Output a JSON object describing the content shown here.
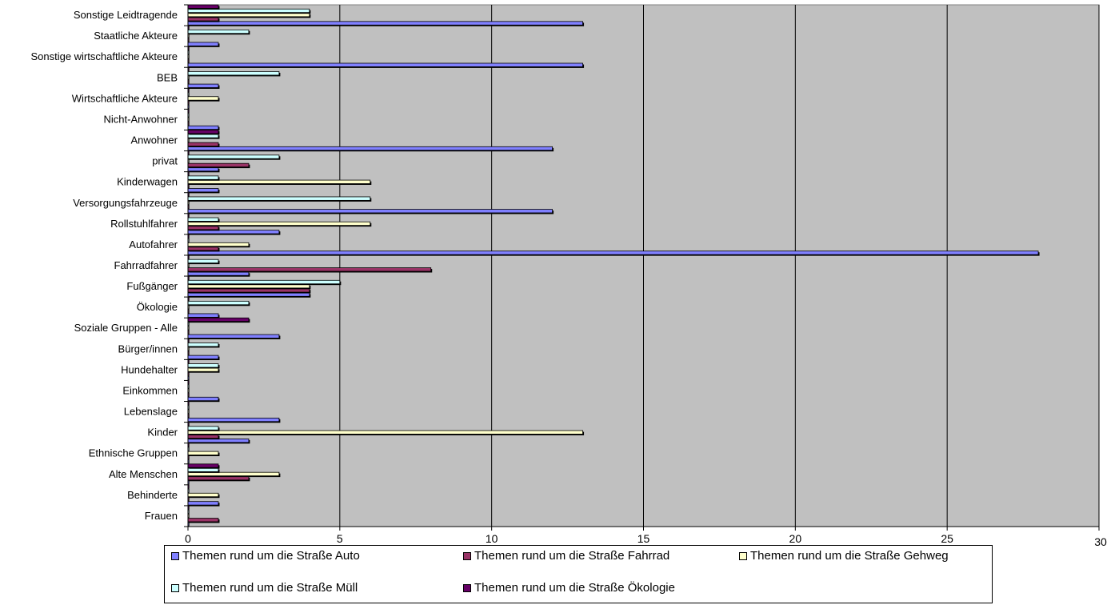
{
  "chart_data": {
    "type": "bar",
    "orientation": "horizontal",
    "categories": [
      "Sonstige Leidtragende",
      "Staatliche Akteure",
      "Sonstige wirtschaftliche Akteure",
      "BEB",
      "Wirtschaftliche Akteure",
      "Nicht-Anwohner",
      "Anwohner",
      "privat",
      "Kinderwagen",
      "Versorgungsfahrzeuge",
      "Rollstuhlfahrer",
      "Autofahrer",
      "Fahrradfahrer",
      "Fußgänger",
      "Ökologie",
      "Soziale Gruppen - Alle",
      "Bürger/innen",
      "Hundehalter",
      "Einkommen",
      "Lebenslage",
      "Kinder",
      "Ethnische Gruppen",
      "Alte Menschen",
      "Behinderte",
      "Frauen"
    ],
    "series": [
      {
        "name": "Themen rund um die Straße Auto",
        "color": "#8080ff",
        "values": [
          13,
          1,
          13,
          1,
          0,
          1,
          12,
          1,
          1,
          12,
          3,
          28,
          2,
          4,
          1,
          3,
          1,
          0,
          1,
          3,
          2,
          0,
          0,
          1,
          0
        ]
      },
      {
        "name": "Themen rund um die Straße Fahrrad",
        "color": "#993366",
        "values": [
          1,
          0,
          0,
          0,
          0,
          0,
          1,
          2,
          0,
          0,
          1,
          1,
          8,
          4,
          0,
          0,
          0,
          0,
          0,
          0,
          1,
          0,
          2,
          0,
          1
        ]
      },
      {
        "name": "Themen rund um die Straße Gehweg",
        "color": "#ffffcc",
        "values": [
          4,
          0,
          0,
          0,
          1,
          0,
          0,
          0,
          6,
          0,
          6,
          2,
          0,
          4,
          0,
          0,
          0,
          1,
          0,
          0,
          13,
          1,
          3,
          1,
          0
        ]
      },
      {
        "name": "Themen rund um die Straße Müll",
        "color": "#ccffff",
        "values": [
          4,
          2,
          0,
          3,
          0,
          0,
          1,
          3,
          1,
          6,
          1,
          0,
          1,
          5,
          2,
          0,
          1,
          1,
          0,
          0,
          1,
          0,
          1,
          0,
          0
        ]
      },
      {
        "name": "Themen rund um die Straße Ökologie",
        "color": "#660066",
        "values": [
          1,
          0,
          0,
          0,
          0,
          0,
          1,
          0,
          0,
          0,
          0,
          0,
          0,
          0,
          0,
          2,
          0,
          0,
          0,
          0,
          0,
          0,
          1,
          0,
          0
        ]
      }
    ],
    "xlim": [
      0,
      30
    ],
    "xticks": [
      0,
      5,
      10,
      15,
      20,
      25,
      30
    ],
    "xtick_labels": [
      "0",
      "5",
      "10",
      "15",
      "20",
      "25",
      "30"
    ],
    "grid": true,
    "plot_background": "#c0c0c0",
    "legend_position": "bottom"
  }
}
